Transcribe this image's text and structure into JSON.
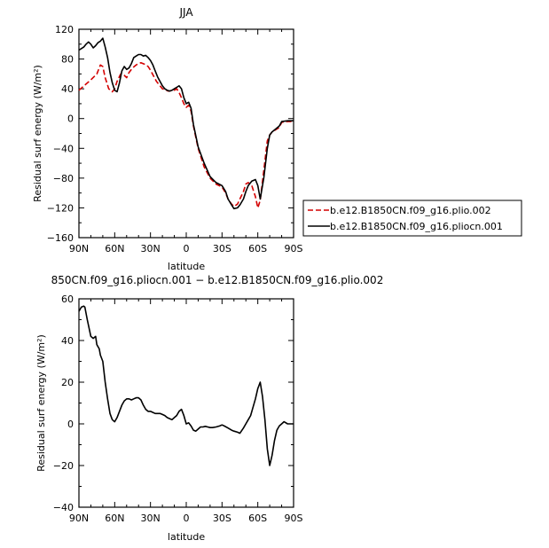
{
  "chart_data": [
    {
      "type": "line",
      "title": "JJA",
      "xlabel": "latitude",
      "ylabel": "Residual surf energy (W/m²)",
      "x_ticks": [
        "90N",
        "60N",
        "30N",
        "0",
        "30S",
        "60S",
        "90S"
      ],
      "y_ticks": [
        "120",
        "80",
        "40",
        "0",
        "−40",
        "−80",
        "−120",
        "−160"
      ],
      "xlim": [
        90,
        -90
      ],
      "ylim": [
        -160,
        120
      ],
      "grid": false,
      "legend_position": "outside-right",
      "series": [
        {
          "name": "b.e12.B1850CN.f09_g16.plio.002",
          "color": "#d40000",
          "style": "dashed",
          "x": [
            90,
            85,
            80,
            75,
            72,
            70,
            68,
            65,
            62,
            60,
            58,
            55,
            52,
            50,
            48,
            45,
            42,
            40,
            38,
            35,
            32,
            30,
            25,
            20,
            15,
            10,
            8,
            6,
            4,
            2,
            0,
            -2,
            -4,
            -6,
            -10,
            -15,
            -20,
            -25,
            -30,
            -33,
            -35,
            -38,
            -40,
            -43,
            -45,
            -48,
            -50,
            -52,
            -55,
            -58,
            -60,
            -62,
            -65,
            -68,
            -70,
            -72,
            -75,
            -78,
            -80,
            -85,
            -90
          ],
          "y": [
            38,
            45,
            52,
            60,
            72,
            70,
            55,
            40,
            36,
            40,
            50,
            60,
            58,
            55,
            62,
            68,
            72,
            74,
            75,
            73,
            70,
            65,
            50,
            40,
            37,
            38,
            40,
            35,
            28,
            20,
            15,
            18,
            10,
            -10,
            -40,
            -65,
            -80,
            -88,
            -92,
            -100,
            -108,
            -115,
            -118,
            -115,
            -108,
            -98,
            -88,
            -86,
            -90,
            -105,
            -120,
            -110,
            -70,
            -30,
            -22,
            -18,
            -15,
            -12,
            -5,
            -4,
            -4
          ]
        },
        {
          "name": "b.e12.B1850CN.f09_g16.pliocn.001",
          "color": "#000000",
          "style": "solid",
          "x": [
            90,
            88,
            86,
            84,
            82,
            80,
            78,
            76,
            74,
            72,
            70,
            68,
            66,
            64,
            62,
            60,
            58,
            56,
            54,
            52,
            50,
            48,
            46,
            44,
            42,
            40,
            38,
            36,
            34,
            32,
            30,
            28,
            26,
            24,
            22,
            20,
            18,
            16,
            14,
            12,
            10,
            8,
            6,
            4,
            2,
            0,
            -2,
            -4,
            -6,
            -10,
            -15,
            -20,
            -25,
            -30,
            -33,
            -35,
            -38,
            -40,
            -43,
            -45,
            -48,
            -50,
            -52,
            -55,
            -58,
            -60,
            -62,
            -65,
            -68,
            -70,
            -72,
            -75,
            -78,
            -80,
            -85,
            -90
          ],
          "y": [
            92,
            94,
            96,
            100,
            103,
            100,
            95,
            98,
            102,
            104,
            108,
            96,
            82,
            62,
            48,
            38,
            36,
            48,
            64,
            70,
            66,
            68,
            74,
            82,
            84,
            86,
            86,
            84,
            85,
            82,
            78,
            72,
            64,
            56,
            50,
            44,
            40,
            38,
            37,
            38,
            40,
            42,
            44,
            40,
            28,
            20,
            22,
            14,
            -8,
            -38,
            -60,
            -78,
            -86,
            -90,
            -98,
            -108,
            -116,
            -121,
            -120,
            -116,
            -108,
            -98,
            -90,
            -84,
            -82,
            -90,
            -108,
            -80,
            -40,
            -22,
            -18,
            -14,
            -10,
            -4,
            -3,
            -3
          ]
        }
      ]
    },
    {
      "type": "line",
      "title": "850CN.f09_g16.pliocn.001 − b.e12.B1850CN.f09_g16.plio.002",
      "xlabel": "latitude",
      "ylabel": "Residual surf energy (W/m²)",
      "x_ticks": [
        "90N",
        "60N",
        "30N",
        "0",
        "30S",
        "60S",
        "90S"
      ],
      "y_ticks": [
        "60",
        "40",
        "20",
        "0",
        "−20",
        "−40"
      ],
      "xlim": [
        90,
        -90
      ],
      "ylim": [
        -40,
        60
      ],
      "grid": false,
      "series": [
        {
          "color": "#000000",
          "style": "solid",
          "x": [
            90,
            88,
            86,
            85,
            83,
            80,
            78,
            76,
            75,
            73,
            72,
            70,
            68,
            66,
            64,
            62,
            60,
            58,
            56,
            54,
            52,
            50,
            48,
            46,
            44,
            42,
            40,
            38,
            36,
            34,
            32,
            30,
            28,
            26,
            24,
            22,
            20,
            18,
            16,
            14,
            12,
            10,
            8,
            6,
            4,
            2,
            0,
            -2,
            -4,
            -6,
            -8,
            -10,
            -12,
            -14,
            -16,
            -18,
            -20,
            -22,
            -25,
            -28,
            -30,
            -32,
            -35,
            -38,
            -40,
            -43,
            -45,
            -48,
            -50,
            -52,
            -54,
            -56,
            -58,
            -60,
            -62,
            -64,
            -66,
            -68,
            -70,
            -72,
            -74,
            -76,
            -78,
            -80,
            -82,
            -85,
            -88,
            -90
          ],
          "y": [
            54,
            56,
            56.5,
            56,
            50,
            42,
            41,
            42,
            38,
            36,
            33,
            30,
            20,
            12,
            5,
            2,
            1,
            3,
            6,
            9,
            11,
            12,
            12,
            11.5,
            12,
            12.5,
            12.5,
            11.5,
            9,
            7,
            6,
            6,
            5.5,
            5,
            5,
            5,
            4.5,
            4,
            3,
            2.5,
            2,
            3,
            4,
            6,
            7,
            4,
            0,
            0.5,
            -1,
            -3,
            -3.5,
            -2.5,
            -1.5,
            -1.5,
            -1.2,
            -1.5,
            -1.8,
            -1.8,
            -1.5,
            -1,
            -0.5,
            -1,
            -2,
            -3,
            -3.5,
            -4,
            -4.5,
            -2,
            0,
            2,
            4,
            8,
            12,
            17,
            20,
            13,
            2,
            -12,
            -20,
            -15,
            -8,
            -3,
            -1,
            0,
            1,
            0,
            0,
            0
          ]
        }
      ]
    }
  ]
}
